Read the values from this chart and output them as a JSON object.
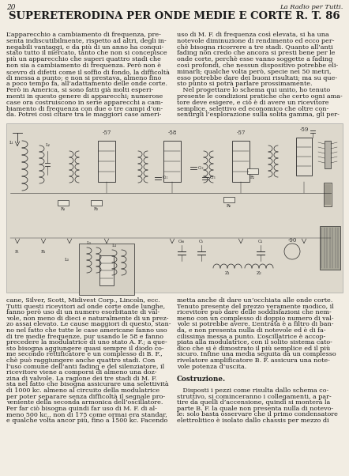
{
  "page_number": "20",
  "header_right": "La Radio per Tutti.",
  "title": "SUPERETERODINA PER ONDE MEDIE E CORTE R. T. 86",
  "col1_text": [
    "L’apparecchio a cambiamento di frequenza, pre-",
    "senta indiscutibilmente, rispetto ad altri, degli in-",
    "negabili vantaggi, e da più di un anno ha conqui-",
    "stato tutto il mercato, tanto che non si concepisce",
    "più un apparecchio che superi quattro stadi che",
    "non sia a cambiamento di frequenza. Però non è",
    "scevro di difetti come il soffio di fondo, la difficoltà",
    "di messa a punto; e non si prestava, almeno fino",
    "a poco tempo fa, all’adattamento delle onde corte.",
    "Però in America, si sono fatti già molti esperi-",
    "menti in questo genere di apparecchi; numerose",
    "case ora costruiscono in serie apparecchi a cam-",
    "biamento di frequenza con due o tre campi d’on-",
    "da. Potrei così citare tra le maggiori case ameri-"
  ],
  "col2_text": [
    "uso di M. F. di frequenza così elevata, si ha una",
    "notevole diminuzione di rendimento ed ecco per-",
    "chè bisogna ricorrere a tre stadi. Quanto all’anti",
    "fading non credo che ancora si presti bene per le",
    "onde corte, perchè esse vanno soggette a fading",
    "così profondi, che nessun dispositivo potrebbe eli-",
    "minarli; qualche volta però, specie nei 50 metri,",
    "esso potrebbe dare dei buoni risultati; ma su que-",
    "sto punto si potrà parlare prossimamente.",
    "   Nel progettare lo schema qui unito, ho tenuto",
    "presente le condizioni pratiche che certo ogni ama-",
    "tore deve esigere, e ciò è di avere un ricevitore",
    "semplice, selettivo ed economico che oltre con-",
    "sentirgli l’esplorazione sulla solita gamma, gli per-"
  ],
  "col1_bottom": [
    "cane, Silver, Scott, Midivest Corp., Lincoln, ecc.",
    "Tutti questi ricevitori ad onde corte onde lunghe,",
    "fanno però uso di un numero esorbitante di val-",
    "vole, non meno di dieci e naturalmente di un prez-",
    "zo assai elevato. Le cause maggiori di questo, stan-",
    "no nel fatto che tutte le case americane fanno uso",
    "di tre medie frequenze, pur usando le 58 e fanno",
    "precedere la modulatrice di uno stato A. F.; a que-",
    "sto bisogna aggiungere quasi sempre il diodo co-",
    "me secondo rettificatore e un complesso di B. F.,",
    "chè può raggiungere anche quattro stadi. Con",
    "l’uso comune dell’anti fading e del silenziatore, il",
    "ricevitore viene a comporsi di almeno una doz-",
    "zina di valvole. La ragione dei tre stadi di M. F.",
    "sta nel fatto che bisogna assicurare una selettività",
    "di 1000 kc. almeno al circuito della modulatrice",
    "per poter separare senza difficoltà il segnale pro-",
    "veniente della seconda armonica dell’oscillatore.",
    "Per far ciò bisogna quindi far uso di M. F. di al-",
    "meno 500 kc., non di 175 come ormai era standar,",
    "e qualche volta ancor più, fino a 1500 kc. Facendo"
  ],
  "col2_bottom": [
    "metta anche di dare un’occhiata alle onde corte.",
    "Tenuto presente del prezzo veramente modico, il",
    "ricevitore può dare delle soddisfazioni che nem-",
    "meno con un complesso di doppio numero di val-",
    "vole si potrebbe avere. L’entrata è a filtro di ban-",
    "da, e non presenta nulla di notevole ed è di fa-",
    "cilissima messa a punto. L’oscillatrice è accop-",
    "piata alla modulatrice, con il solito sistema cato-",
    "dico che si è dimostrato il più semplice ed il più",
    "sicuro. Infine una media seguita da un complesso",
    "rivelatore amplificatore B. F. assicura una note-",
    "vole potenza d’uscita.",
    "",
    "Costruzione.",
    "",
    "   Disposti i pezzi come risulta dallo schema co-",
    "struttivo, si cominceranno i collegamenti, a par-",
    "tire da quelli d’accensione, quindi si monterà la",
    "parte B. F. la quale non presenta nulla di notevo-",
    "le: solo basta osservare che il primo condensatore",
    "elettrolitico è isolato dallo chassis per mezzo di"
  ],
  "bg_color": "#f2ede3",
  "text_color": "#1c1c1c",
  "circuit_bg": "#ddd8cc",
  "circuit_line": "#2a2a2a"
}
